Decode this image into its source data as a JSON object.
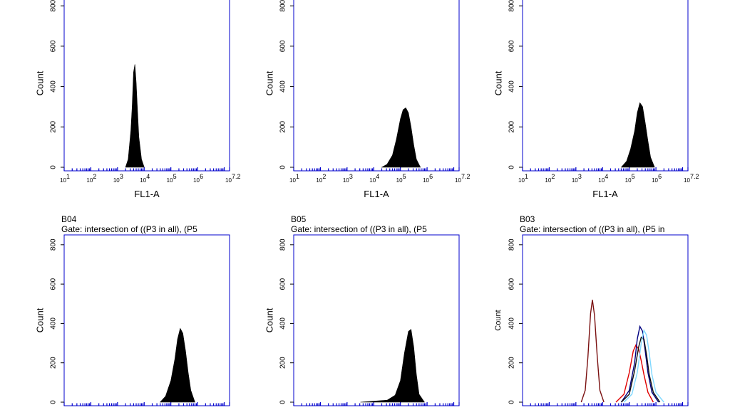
{
  "chart_data": [
    {
      "type": "histogram",
      "title": "",
      "subtitle": "",
      "xlabel": "FL1-A",
      "ylabel": "Count",
      "xscale": "log",
      "xlim_log10": [
        1,
        7.2
      ],
      "ylim": [
        0,
        850
      ],
      "yticks": [
        "0",
        "200",
        "400",
        "600",
        "800"
      ],
      "xtick_labels": [
        "10",
        "10",
        "10",
        "10",
        "10",
        "10",
        "10"
      ],
      "xtick_exponents": [
        "1",
        "2",
        "3",
        "4",
        "5",
        "6",
        "7.2"
      ],
      "fill": "#000000",
      "axis_color": "#0000cc",
      "series": [
        {
          "x_log10": [
            3.3,
            3.4,
            3.5,
            3.55,
            3.6,
            3.65,
            3.7,
            3.75,
            3.8,
            3.9,
            4.0
          ],
          "y": [
            0,
            40,
            180,
            300,
            470,
            510,
            420,
            280,
            150,
            40,
            0
          ]
        }
      ]
    },
    {
      "type": "histogram",
      "title": "",
      "subtitle": "",
      "xlabel": "FL1-A",
      "ylabel": "Count",
      "xscale": "log",
      "xlim_log10": [
        1,
        7.2
      ],
      "ylim": [
        0,
        850
      ],
      "yticks": [
        "0",
        "200",
        "400",
        "600",
        "800"
      ],
      "xtick_labels": [
        "10",
        "10",
        "10",
        "10",
        "10",
        "10",
        "10"
      ],
      "xtick_exponents": [
        "1",
        "2",
        "3",
        "4",
        "5",
        "6",
        "7.2"
      ],
      "fill": "#000000",
      "axis_color": "#0000cc",
      "series": [
        {
          "x_log10": [
            4.3,
            4.5,
            4.7,
            4.85,
            5.0,
            5.1,
            5.2,
            5.3,
            5.4,
            5.5,
            5.6,
            5.75
          ],
          "y": [
            0,
            15,
            60,
            140,
            240,
            285,
            295,
            270,
            200,
            110,
            40,
            0
          ]
        }
      ]
    },
    {
      "type": "histogram",
      "title": "",
      "subtitle": "",
      "xlabel": "FL1-A",
      "ylabel": "Count",
      "xscale": "log",
      "xlim_log10": [
        1,
        7.2
      ],
      "ylim": [
        0,
        850
      ],
      "yticks": [
        "0",
        "200",
        "400",
        "600",
        "800"
      ],
      "xtick_labels": [
        "10",
        "10",
        "10",
        "10",
        "10",
        "10",
        "10"
      ],
      "xtick_exponents": [
        "1",
        "2",
        "3",
        "4",
        "5",
        "6",
        "7.2"
      ],
      "fill": "#000000",
      "axis_color": "#0000cc",
      "series": [
        {
          "x_log10": [
            4.7,
            4.9,
            5.05,
            5.2,
            5.3,
            5.4,
            5.5,
            5.6,
            5.7,
            5.8,
            5.95
          ],
          "y": [
            0,
            30,
            90,
            180,
            270,
            320,
            300,
            220,
            130,
            50,
            0
          ]
        }
      ]
    },
    {
      "type": "histogram",
      "title": "B04",
      "subtitle": "Gate: intersection of ((P3 in all), (P5",
      "xlabel": "",
      "ylabel": "Count",
      "xscale": "log",
      "xlim_log10": [
        1,
        7.2
      ],
      "ylim": [
        0,
        850
      ],
      "yticks": [
        "0",
        "200",
        "400",
        "600",
        "800"
      ],
      "xtick_labels": [],
      "xtick_exponents": [],
      "fill": "#000000",
      "axis_color": "#0000cc",
      "series": [
        {
          "x_log10": [
            4.6,
            4.8,
            5.0,
            5.15,
            5.25,
            5.35,
            5.45,
            5.55,
            5.65,
            5.75,
            5.9
          ],
          "y": [
            0,
            30,
            110,
            220,
            320,
            375,
            350,
            260,
            150,
            60,
            0
          ]
        }
      ]
    },
    {
      "type": "histogram",
      "title": "B05",
      "subtitle": "Gate: intersection of ((P3 in all), (P5",
      "xlabel": "",
      "ylabel": "Count",
      "xscale": "log",
      "xlim_log10": [
        1,
        7.2
      ],
      "ylim": [
        0,
        850
      ],
      "yticks": [
        "0",
        "200",
        "400",
        "600",
        "800"
      ],
      "xtick_labels": [],
      "xtick_exponents": [],
      "fill": "#000000",
      "axis_color": "#0000cc",
      "series": [
        {
          "x_log10": [
            3.5,
            4.0,
            4.5,
            4.8,
            5.0,
            5.15,
            5.3,
            5.4,
            5.5,
            5.6,
            5.7,
            5.9
          ],
          "y": [
            0,
            5,
            10,
            35,
            110,
            250,
            360,
            370,
            280,
            140,
            40,
            0
          ]
        }
      ]
    },
    {
      "type": "line",
      "title": "B03",
      "subtitle": "Gate: intersection of ((P3 in all), (P5 in",
      "xlabel": "",
      "ylabel": "Count",
      "xscale": "log",
      "xlim_log10": [
        1,
        7.2
      ],
      "ylim": [
        0,
        850
      ],
      "yticks": [
        "0",
        "200",
        "400",
        "600",
        "800"
      ],
      "xtick_labels": [],
      "xtick_exponents": [],
      "axis_color": "#0000cc",
      "series": [
        {
          "color": "#7a1010",
          "x_log10": [
            3.2,
            3.35,
            3.45,
            3.55,
            3.62,
            3.7,
            3.8,
            3.9,
            4.05
          ],
          "y": [
            0,
            60,
            230,
            450,
            520,
            440,
            230,
            60,
            0
          ]
        },
        {
          "color": "#e00000",
          "x_log10": [
            4.5,
            4.8,
            5.0,
            5.15,
            5.25,
            5.35,
            5.45,
            5.55,
            5.7,
            5.9
          ],
          "y": [
            0,
            40,
            150,
            260,
            290,
            270,
            210,
            140,
            50,
            0
          ]
        },
        {
          "color": "#000080",
          "x_log10": [
            4.7,
            5.0,
            5.2,
            5.3,
            5.4,
            5.5,
            5.6,
            5.7,
            5.85,
            6.1
          ],
          "y": [
            0,
            60,
            200,
            320,
            385,
            360,
            260,
            150,
            50,
            0
          ]
        },
        {
          "color": "#111111",
          "x_log10": [
            4.7,
            5.0,
            5.2,
            5.35,
            5.45,
            5.55,
            5.65,
            5.75,
            5.9,
            6.15
          ],
          "y": [
            0,
            40,
            160,
            280,
            330,
            320,
            240,
            140,
            50,
            0
          ]
        },
        {
          "color": "#7fd8ff",
          "x_log10": [
            4.8,
            5.1,
            5.3,
            5.45,
            5.55,
            5.65,
            5.75,
            5.85,
            6.0,
            6.3
          ],
          "y": [
            0,
            40,
            150,
            300,
            365,
            340,
            250,
            140,
            50,
            0
          ]
        }
      ]
    }
  ]
}
